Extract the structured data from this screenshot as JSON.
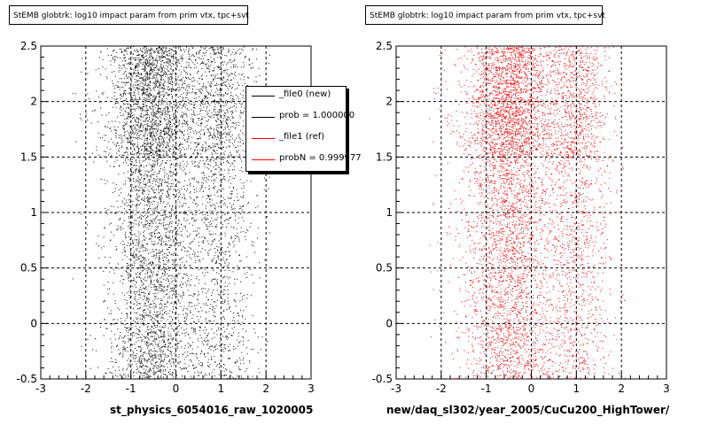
{
  "chart_data": [
    {
      "type": "scatter",
      "title": "StEMB globtrk: log10 impact param from prim vtx, tpc+svt",
      "xlabel": "st_physics_6054016_raw_1020005",
      "ylabel": "",
      "xlim": [
        -3,
        3
      ],
      "ylim": [
        -0.5,
        2.5
      ],
      "x_ticks": [
        "-3",
        "-2",
        "-1",
        "0",
        "1",
        "2",
        "3"
      ],
      "y_ticks": [
        "-0.5",
        "0",
        "0.5",
        "1",
        "1.5",
        "2",
        "2.5"
      ],
      "grid": true,
      "marker_color": "#000000",
      "legend": {
        "position": "top-right",
        "entries": [
          {
            "label": "_file0 (new)",
            "color": "#000000"
          },
          {
            "label": "prob = 1.000000",
            "color": "#000000"
          },
          {
            "label": "_file1 (ref)",
            "color": "#ff0000"
          },
          {
            "label": "probN = 0.999977",
            "color": "#ff0000"
          }
        ]
      }
    },
    {
      "type": "scatter",
      "title": "StEMB globtrk: log10 impact param from prim vtx, tpc+svt",
      "xlabel": "new/daq_sl302/year_2005/CuCu200_HighTower/",
      "ylabel": "",
      "xlim": [
        -3,
        3
      ],
      "ylim": [
        -0.5,
        2.5
      ],
      "x_ticks": [
        "-3",
        "-2",
        "-1",
        "0",
        "1",
        "2",
        "3"
      ],
      "y_ticks": [
        "-0.5",
        "0",
        "0.5",
        "1",
        "1.5",
        "2",
        "2.5"
      ],
      "grid": true,
      "marker_color": "#ff0000"
    }
  ]
}
